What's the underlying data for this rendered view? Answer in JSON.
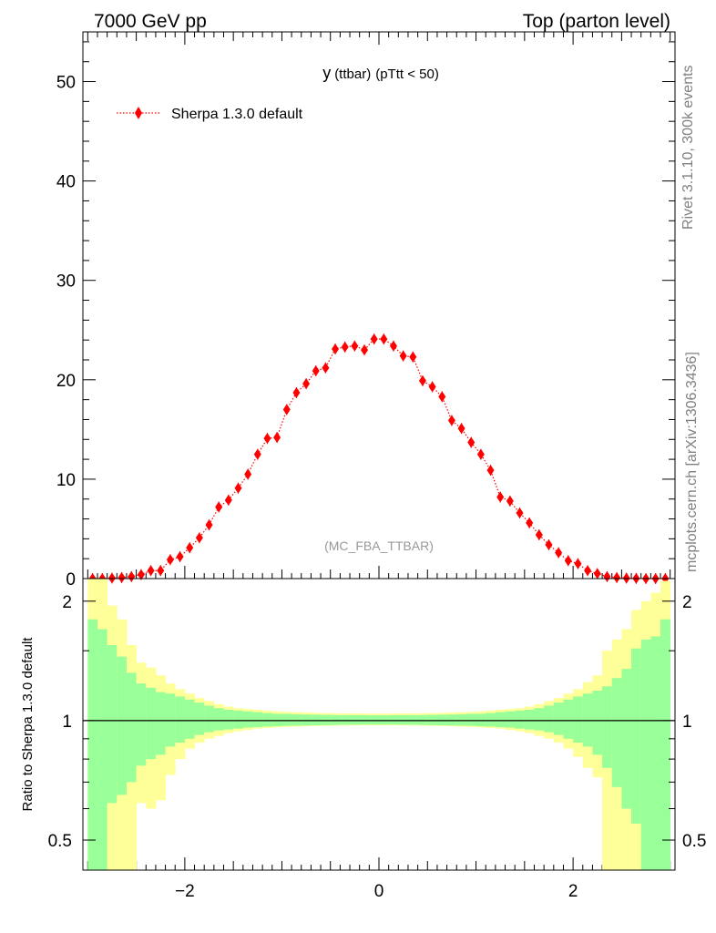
{
  "header": {
    "left_label": "7000 GeV pp",
    "right_label": "Top (parton level)"
  },
  "side_labels": {
    "rivet": "Rivet 3.1.10,  300k events",
    "mcplots": "mcplots.cern.ch [arXiv:1306.3436]"
  },
  "chart_data": {
    "type": "scatter",
    "title": "y (ttbar) (pTtt < 50)",
    "title_main": "y",
    "title_small": "(ttbar)",
    "title_tail": "(pTtt < 50)",
    "watermark": "(MC_FBA_TTBAR)",
    "legend": [
      {
        "label": "Sherpa 1.3.0 default",
        "color": "#ff0000",
        "marker": "diamond",
        "line": "dotted"
      }
    ],
    "xlim": [
      -3.05,
      3.05
    ],
    "ylim": [
      0,
      55
    ],
    "x_ticks": [
      -2,
      0,
      2
    ],
    "x_tick_labels": [
      "−2",
      "0",
      "2"
    ],
    "y_ticks": [
      0,
      10,
      20,
      30,
      40,
      50
    ],
    "y_tick_labels": [
      "0",
      "10",
      "20",
      "30",
      "40",
      "50"
    ],
    "series": [
      {
        "name": "Sherpa 1.3.0 default",
        "color": "#ff0000",
        "x": [
          -2.95,
          -2.85,
          -2.75,
          -2.65,
          -2.55,
          -2.45,
          -2.35,
          -2.25,
          -2.15,
          -2.05,
          -1.95,
          -1.85,
          -1.75,
          -1.65,
          -1.55,
          -1.45,
          -1.35,
          -1.25,
          -1.15,
          -1.05,
          -0.95,
          -0.85,
          -0.75,
          -0.65,
          -0.55,
          -0.45,
          -0.35,
          -0.25,
          -0.15,
          -0.05,
          0.05,
          0.15,
          0.25,
          0.35,
          0.45,
          0.55,
          0.65,
          0.75,
          0.85,
          0.95,
          1.05,
          1.15,
          1.25,
          1.35,
          1.45,
          1.55,
          1.65,
          1.75,
          1.85,
          1.95,
          2.05,
          2.15,
          2.25,
          2.35,
          2.45,
          2.55,
          2.65,
          2.75,
          2.85,
          2.95
        ],
        "values": [
          0.0,
          0.0,
          0.05,
          0.1,
          0.2,
          0.4,
          0.8,
          0.8,
          1.9,
          2.2,
          3.1,
          4.1,
          5.4,
          7.2,
          7.9,
          9.1,
          10.5,
          12.5,
          14.1,
          14.2,
          17.0,
          18.7,
          19.6,
          20.9,
          21.2,
          23.1,
          23.3,
          23.4,
          23.0,
          24.1,
          24.1,
          23.4,
          22.4,
          22.3,
          19.9,
          19.3,
          18.3,
          15.9,
          15.1,
          13.7,
          12.5,
          10.9,
          8.2,
          7.8,
          6.6,
          5.6,
          4.4,
          3.4,
          2.6,
          1.8,
          1.5,
          0.8,
          0.5,
          0.2,
          0.1,
          0.05,
          0.02,
          0.0,
          0.0,
          0.0
        ]
      }
    ],
    "ratio": {
      "ylabel": "Ratio to Sherpa 1.3.0 default",
      "ylim": [
        0.42,
        2.28
      ],
      "y_ticks": [
        0.5,
        1,
        2
      ],
      "y_tick_labels": [
        "0.5",
        "1",
        "2"
      ],
      "reference": 1.0,
      "band_colors": {
        "inner": "#99ff99",
        "outer": "#ffff99"
      },
      "inner_up": [
        1.8,
        1.7,
        1.55,
        1.45,
        1.32,
        1.24,
        1.21,
        1.18,
        1.17,
        1.15,
        1.13,
        1.11,
        1.09,
        1.075,
        1.065,
        1.06,
        1.055,
        1.05,
        1.045,
        1.04,
        1.04,
        1.038,
        1.036,
        1.035,
        1.034,
        1.033,
        1.032,
        1.032,
        1.032,
        1.031,
        1.031,
        1.032,
        1.032,
        1.032,
        1.033,
        1.034,
        1.035,
        1.036,
        1.038,
        1.04,
        1.04,
        1.045,
        1.05,
        1.055,
        1.06,
        1.065,
        1.075,
        1.09,
        1.11,
        1.13,
        1.15,
        1.17,
        1.19,
        1.22,
        1.28,
        1.35,
        1.52,
        1.6,
        1.63,
        1.8
      ],
      "outer_up": [
        2.4,
        2.3,
        1.95,
        1.8,
        1.55,
        1.4,
        1.36,
        1.3,
        1.24,
        1.2,
        1.17,
        1.14,
        1.12,
        1.1,
        1.085,
        1.075,
        1.07,
        1.065,
        1.06,
        1.055,
        1.052,
        1.05,
        1.048,
        1.046,
        1.045,
        1.044,
        1.043,
        1.043,
        1.042,
        1.042,
        1.042,
        1.042,
        1.043,
        1.043,
        1.044,
        1.045,
        1.046,
        1.048,
        1.05,
        1.052,
        1.055,
        1.06,
        1.065,
        1.07,
        1.075,
        1.085,
        1.1,
        1.12,
        1.14,
        1.17,
        1.2,
        1.25,
        1.3,
        1.5,
        1.6,
        1.7,
        1.9,
        2.0,
        2.1,
        2.25
      ],
      "inner_dn": [
        0.0,
        0.0,
        0.62,
        0.65,
        0.7,
        0.77,
        0.8,
        0.82,
        0.86,
        0.88,
        0.9,
        0.92,
        0.935,
        0.945,
        0.95,
        0.955,
        0.96,
        0.963,
        0.966,
        0.968,
        0.97,
        0.971,
        0.972,
        0.973,
        0.974,
        0.975,
        0.976,
        0.976,
        0.977,
        0.977,
        0.977,
        0.977,
        0.976,
        0.976,
        0.975,
        0.974,
        0.973,
        0.972,
        0.971,
        0.97,
        0.968,
        0.966,
        0.963,
        0.96,
        0.955,
        0.95,
        0.945,
        0.935,
        0.92,
        0.9,
        0.88,
        0.86,
        0.82,
        0.76,
        0.68,
        0.6,
        0.55,
        0.0,
        0.0,
        0.0
      ],
      "outer_dn": [
        0.0,
        0.0,
        0.0,
        0.0,
        0.0,
        0.62,
        0.6,
        0.63,
        0.73,
        0.8,
        0.85,
        0.88,
        0.9,
        0.915,
        0.93,
        0.94,
        0.948,
        0.955,
        0.958,
        0.962,
        0.964,
        0.966,
        0.968,
        0.969,
        0.97,
        0.971,
        0.972,
        0.972,
        0.973,
        0.973,
        0.973,
        0.973,
        0.972,
        0.972,
        0.971,
        0.97,
        0.969,
        0.968,
        0.966,
        0.964,
        0.962,
        0.958,
        0.955,
        0.948,
        0.94,
        0.93,
        0.915,
        0.9,
        0.88,
        0.85,
        0.81,
        0.76,
        0.72,
        0.0,
        0.0,
        0.0,
        0.0,
        0.0,
        0.0,
        0.0
      ]
    }
  }
}
